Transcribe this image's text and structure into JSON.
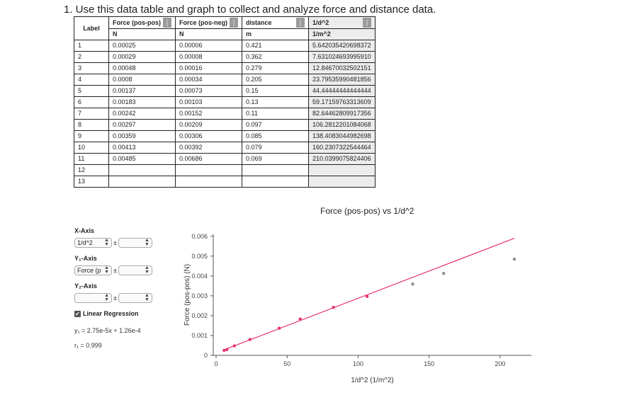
{
  "title": "1. Use this data table and graph to collect and analyze force and distance data.",
  "table": {
    "label_header": "Label",
    "columns": [
      {
        "name": "Force (pos-pos)",
        "unit": "N"
      },
      {
        "name": "Force (pos-neg)",
        "unit": "N"
      },
      {
        "name": "distance",
        "unit": "m"
      },
      {
        "name": "1/d^2",
        "unit": "1/m^2"
      }
    ],
    "rows": [
      {
        "label": "1",
        "c1": "0.00025",
        "c2": "0.00006",
        "c3": "0.421",
        "c4": "5.642035420698372"
      },
      {
        "label": "2",
        "c1": "0.00029",
        "c2": "0.00008",
        "c3": "0.362",
        "c4": "7.631024693995910"
      },
      {
        "label": "3",
        "c1": "0.00048",
        "c2": "0.00016",
        "c3": "0.279",
        "c4": "12.84670032502151"
      },
      {
        "label": "4",
        "c1": "0.0008",
        "c2": "0.00034",
        "c3": "0.205",
        "c4": "23.79535990481856"
      },
      {
        "label": "5",
        "c1": "0.00137",
        "c2": "0.00073",
        "c3": "0.15",
        "c4": "44.44444444444444"
      },
      {
        "label": "6",
        "c1": "0.00183",
        "c2": "0.00103",
        "c3": "0.13",
        "c4": "59.17159763313609"
      },
      {
        "label": "7",
        "c1": "0.00242",
        "c2": "0.00152",
        "c3": "0.11",
        "c4": "82.64462809917356"
      },
      {
        "label": "8",
        "c1": "0.00297",
        "c2": "0.00209",
        "c3": "0.097",
        "c4": "106.2812201084068"
      },
      {
        "label": "9",
        "c1": "0.00359",
        "c2": "0.00306",
        "c3": "0.085",
        "c4": "138.4083044982698"
      },
      {
        "label": "10",
        "c1": "0.00413",
        "c2": "0.00392",
        "c3": "0.079",
        "c4": "160.2307322544464"
      },
      {
        "label": "11",
        "c1": "0.00485",
        "c2": "0.00686",
        "c3": "0.069",
        "c4": "210.0399075824406"
      },
      {
        "label": "12",
        "c1": "",
        "c2": "",
        "c3": "",
        "c4": ""
      },
      {
        "label": "13",
        "c1": "",
        "c2": "",
        "c3": "",
        "c4": ""
      }
    ]
  },
  "controls": {
    "x_axis_title": "X-Axis",
    "x_axis_value": "1/d^2",
    "y1_axis_title": "Y₁-Axis",
    "y1_axis_value": "Force (p",
    "y2_axis_title": "Y₂-Axis",
    "y2_axis_value": "",
    "plus_minus": "±",
    "regression_label": "Linear Regression",
    "regression_checked": true,
    "equation": "y₁ = 2.75e-5x + 1.26e-4",
    "r_value": "r₁ = 0.999"
  },
  "chart_data": {
    "type": "scatter",
    "title": "Force (pos-pos) vs 1/d^2",
    "xlabel": "1/d^2 (1/m^2)",
    "ylabel": "Force (pos-pos) (N)",
    "xlim": [
      -2,
      222
    ],
    "ylim": [
      0,
      0.0061
    ],
    "xticks": [
      0,
      50,
      100,
      150,
      200
    ],
    "yticks": [
      0,
      0.001,
      0.002,
      0.003,
      0.004,
      0.005,
      0.006
    ],
    "point_color_fit": "#e8336d",
    "point_color_outlier": "#8c8c8c",
    "line_color": "#e8336d",
    "points": [
      {
        "x": 5.642,
        "y": 0.00025,
        "fit": true
      },
      {
        "x": 7.631,
        "y": 0.00029,
        "fit": true
      },
      {
        "x": 12.847,
        "y": 0.00048,
        "fit": true
      },
      {
        "x": 23.795,
        "y": 0.0008,
        "fit": true
      },
      {
        "x": 44.444,
        "y": 0.00137,
        "fit": true
      },
      {
        "x": 59.172,
        "y": 0.00183,
        "fit": true
      },
      {
        "x": 82.645,
        "y": 0.00242,
        "fit": true
      },
      {
        "x": 106.281,
        "y": 0.00297,
        "fit": true
      },
      {
        "x": 138.408,
        "y": 0.00359,
        "fit": false
      },
      {
        "x": 160.231,
        "y": 0.00413,
        "fit": false
      },
      {
        "x": 210.04,
        "y": 0.00485,
        "fit": false
      }
    ],
    "regression": {
      "slope": 2.75e-05,
      "intercept": 0.000126,
      "x_start": 5.642,
      "x_end": 210.04
    }
  }
}
